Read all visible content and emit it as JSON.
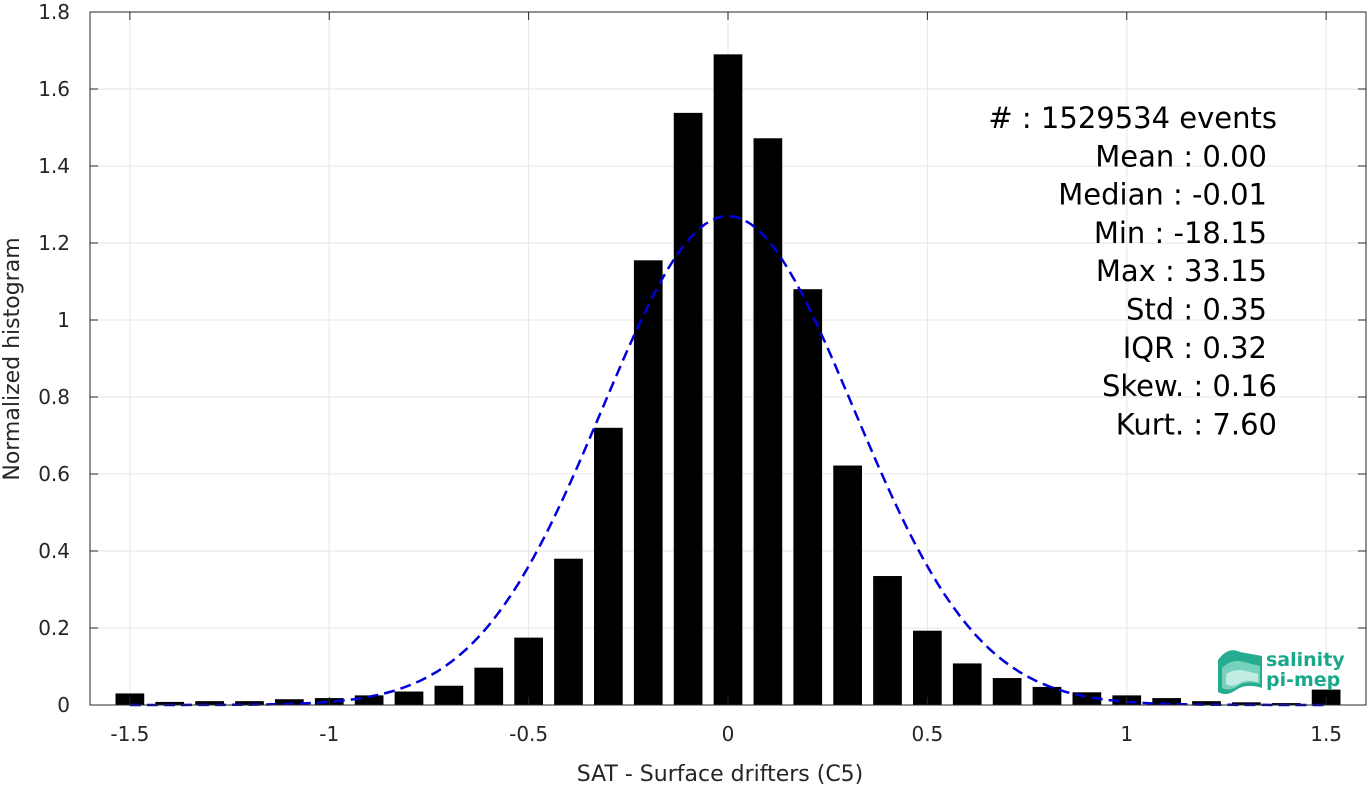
{
  "chart_data": {
    "type": "bar",
    "xlabel": "SAT - Surface drifters (C5)",
    "ylabel": "Normalized histogram",
    "xlim": [
      -1.6,
      1.6
    ],
    "ylim": [
      0,
      1.8
    ],
    "xticks": [
      -1.5,
      -1,
      -0.5,
      0,
      0.5,
      1,
      1.5
    ],
    "xtick_labels": [
      "-1.5",
      "-1",
      "-0.5",
      "0",
      "0.5",
      "1",
      "1.5"
    ],
    "yticks": [
      0,
      0.2,
      0.4,
      0.6,
      0.8,
      1,
      1.2,
      1.4,
      1.6,
      1.8
    ],
    "ytick_labels": [
      "0",
      "0.2",
      "0.4",
      "0.6",
      "0.8",
      "1",
      "1.2",
      "1.4",
      "1.6",
      "1.8"
    ],
    "grid": true,
    "bar_color": "#000000",
    "fit_color": "#0000dd",
    "bins": [
      -1.5,
      -1.4,
      -1.3,
      -1.2,
      -1.1,
      -1.0,
      -0.9,
      -0.8,
      -0.7,
      -0.6,
      -0.5,
      -0.4,
      -0.3,
      -0.2,
      -0.1,
      0.0,
      0.1,
      0.2,
      0.3,
      0.4,
      0.5,
      0.6,
      0.7,
      0.8,
      0.9,
      1.0,
      1.1,
      1.2,
      1.3,
      1.4,
      1.5
    ],
    "values": [
      0.03,
      0.008,
      0.01,
      0.01,
      0.015,
      0.018,
      0.025,
      0.035,
      0.05,
      0.097,
      0.175,
      0.38,
      0.72,
      1.155,
      1.538,
      1.69,
      1.472,
      1.08,
      0.622,
      0.335,
      0.193,
      0.108,
      0.07,
      0.047,
      0.033,
      0.025,
      0.018,
      0.01,
      0.007,
      0.005,
      0.04
    ],
    "fit_curve": {
      "style": "dashed",
      "mean": 0.0,
      "std": 0.315,
      "peak": 1.27
    },
    "stats": [
      {
        "label": "#  : 1529534 events"
      },
      {
        "label": "Mean : 0.00"
      },
      {
        "label": "Median : -0.01"
      },
      {
        "label": "Min : -18.15"
      },
      {
        "label": "Max : 33.15"
      },
      {
        "label": "Std : 0.35"
      },
      {
        "label": "IQR : 0.32"
      },
      {
        "label": "Skew. : 0.16"
      },
      {
        "label": "Kurt. : 7.60"
      }
    ]
  },
  "logo": {
    "line1": "salinity",
    "line2": "pi-mep",
    "color": "#1aa88a"
  }
}
